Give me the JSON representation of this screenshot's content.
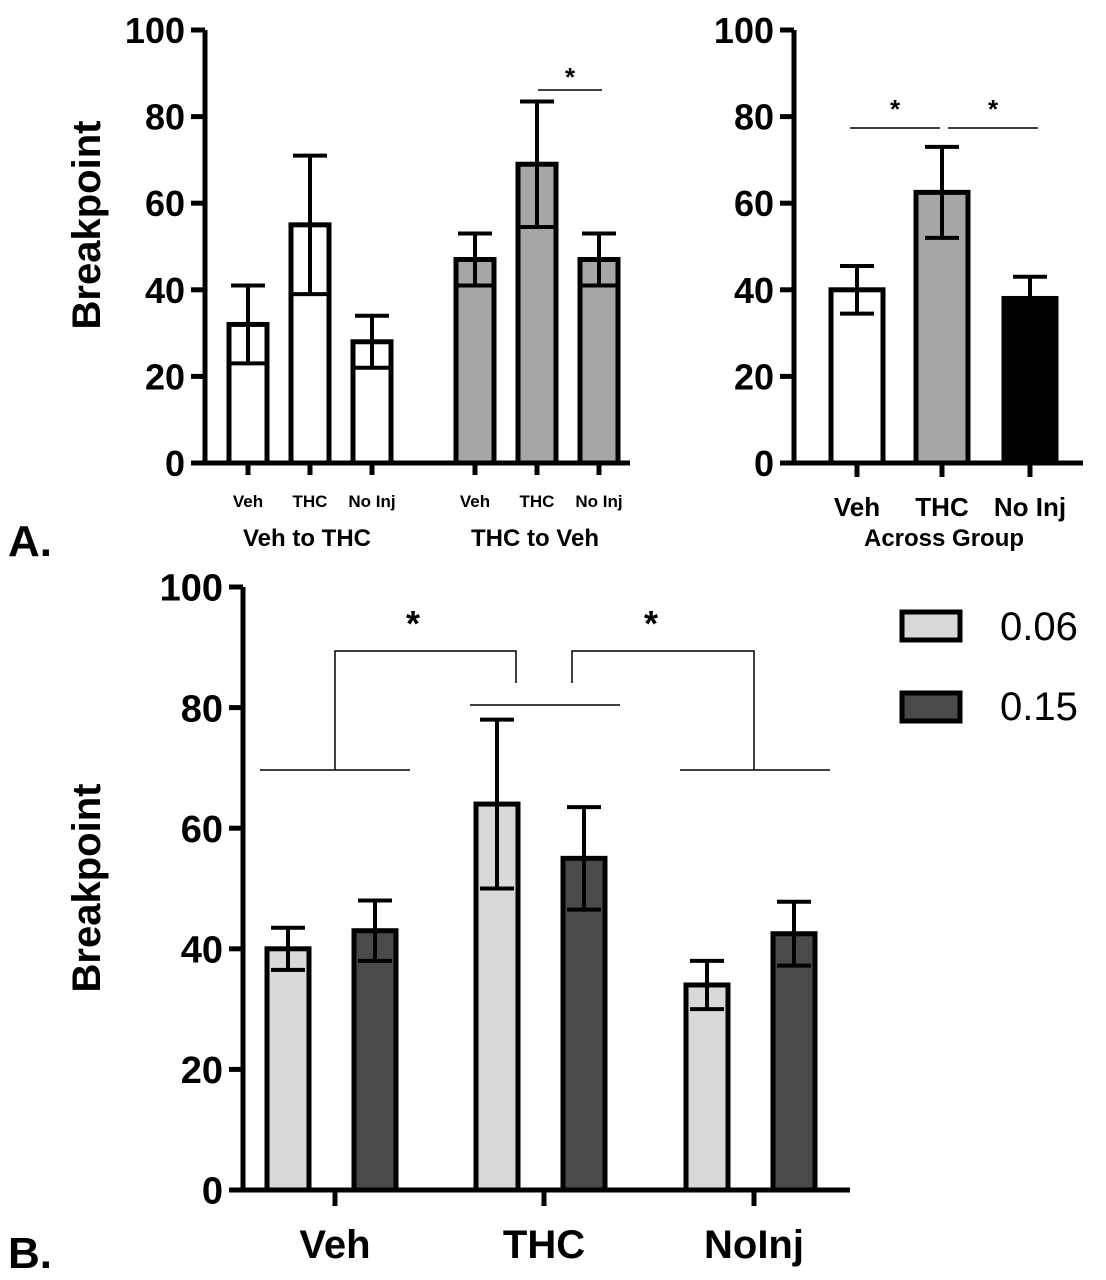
{
  "panel_labels": {
    "a": "A.",
    "b": "B."
  },
  "colors": {
    "white": "#ffffff",
    "gray": "#a6a6a6",
    "black": "#000000",
    "light": "#d9d9d9",
    "dark": "#4a4a4a"
  },
  "chart_data": [
    {
      "type": "bar",
      "ylabel": "Breakpoint",
      "ylim": [
        0,
        100
      ],
      "yticks": [
        "0",
        "20",
        "40",
        "60",
        "80",
        "100"
      ],
      "categories": [
        "Veh",
        "THC",
        "No Inj",
        "Veh",
        "THC",
        "No Inj"
      ],
      "groups": [
        {
          "name": "Veh to THC",
          "color": "#ffffff",
          "values": [
            32,
            55,
            28
          ],
          "errors": [
            9,
            16,
            6
          ]
        },
        {
          "name": "THC to Veh",
          "color": "#a6a6a6",
          "values": [
            47,
            69,
            47
          ],
          "errors": [
            6,
            14.5,
            6
          ]
        }
      ],
      "significance": [
        {
          "between": [
            "THC",
            "No Inj"
          ],
          "group": "THC to Veh",
          "label": "*"
        }
      ]
    },
    {
      "type": "bar",
      "ylabel": "",
      "xlabel": "Across Group",
      "ylim": [
        0,
        100
      ],
      "yticks": [
        "0",
        "20",
        "40",
        "60",
        "80",
        "100"
      ],
      "categories": [
        "Veh",
        "THC",
        "No Inj"
      ],
      "values": [
        40,
        62.5,
        38
      ],
      "errors": [
        5.5,
        10.5,
        5
      ],
      "colors": [
        "#ffffff",
        "#a6a6a6",
        "#000000"
      ],
      "significance": [
        {
          "between": [
            "Veh",
            "THC"
          ],
          "label": "*"
        },
        {
          "between": [
            "THC",
            "No Inj"
          ],
          "label": "*"
        }
      ]
    },
    {
      "type": "bar",
      "ylabel": "Breakpoint",
      "ylim": [
        0,
        100
      ],
      "yticks": [
        "0",
        "20",
        "40",
        "60",
        "80",
        "100"
      ],
      "categories": [
        "Veh",
        "THC",
        "NoInj"
      ],
      "series": [
        {
          "name": "0.06",
          "color": "#d9d9d9",
          "values": [
            40,
            64,
            34
          ],
          "errors": [
            3.5,
            14,
            4
          ]
        },
        {
          "name": "0.15",
          "color": "#4a4a4a",
          "values": [
            43,
            55,
            42.5
          ],
          "errors": [
            5,
            8.5,
            5.3
          ]
        }
      ],
      "legend": "top-right",
      "significance": [
        {
          "between": [
            "Veh",
            "THC"
          ],
          "label": "*"
        },
        {
          "between": [
            "THC",
            "NoInj"
          ],
          "label": "*"
        }
      ]
    }
  ]
}
